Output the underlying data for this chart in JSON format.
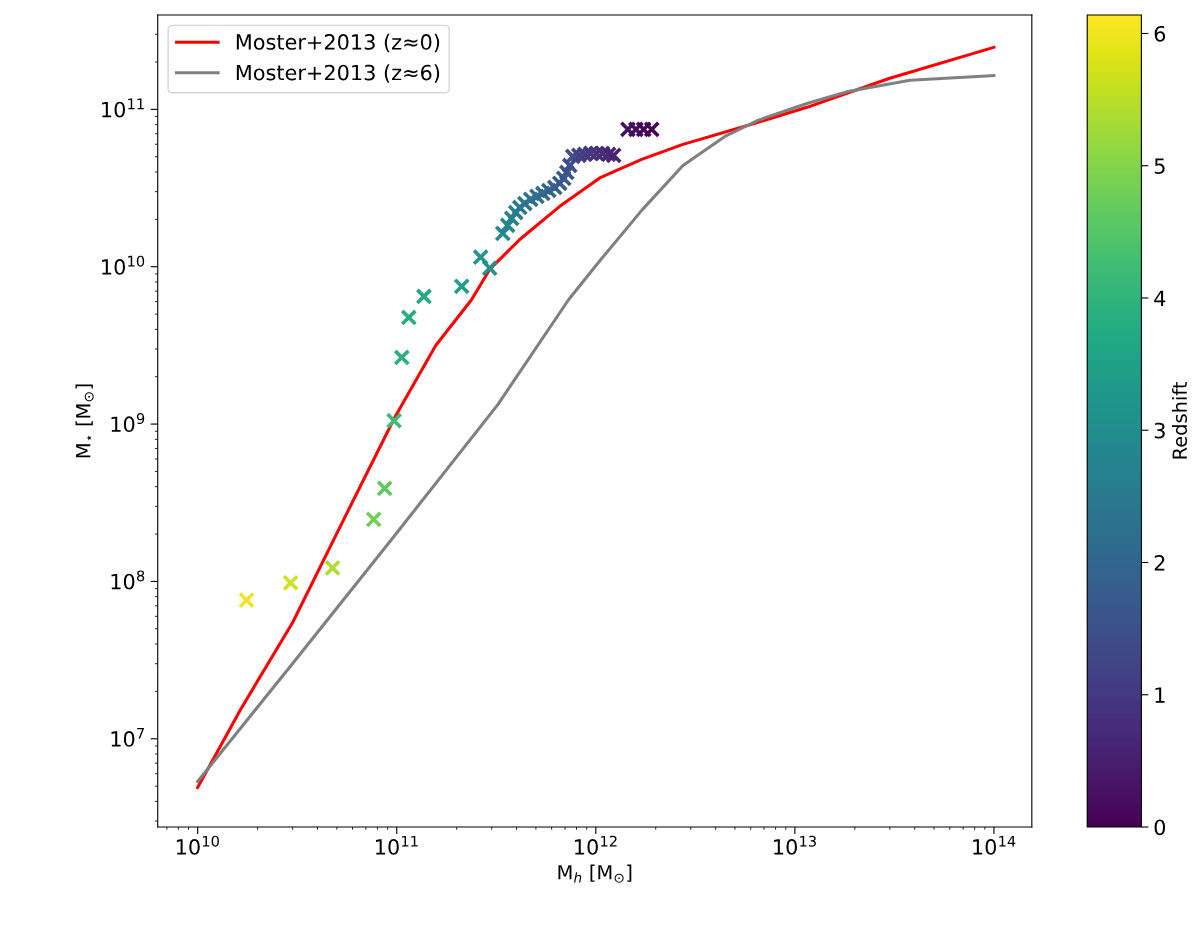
{
  "chart_data": {
    "type": "scatter",
    "xlabel": "M$_{h}$ [M$_{⊙}$]",
    "ylabel": "M$_{⋆}$ [M$_{⊙}$]",
    "clabel": "Redshift",
    "log": "xy",
    "grid": false,
    "legend": "top left",
    "xlim": [
      6300000000.0,
      155000000000000.0
    ],
    "ylim": [
      2750000.0,
      398000000000.0
    ],
    "xticks": [
      {
        "value": 10000000000.0,
        "label": "10$^{10}$"
      },
      {
        "value": 100000000000.0,
        "label": "10$^{11}$"
      },
      {
        "value": 1000000000000.0,
        "label": "10$^{12}$"
      },
      {
        "value": 10000000000000.0,
        "label": "10$^{13}$"
      },
      {
        "value": 100000000000000.0,
        "label": "10$^{14}$"
      }
    ],
    "yticks": [
      {
        "value": 10000000.0,
        "label": "10$^{7}$"
      },
      {
        "value": 100000000.0,
        "label": "10$^{8}$"
      },
      {
        "value": 1000000000.0,
        "label": "10$^{9}$"
      },
      {
        "value": 10000000000.0,
        "label": "10$^{10}$"
      },
      {
        "value": 100000000000.0,
        "label": "10$^{11}$"
      }
    ],
    "clim": [
      0,
      6.14
    ],
    "cticks": [
      0,
      1,
      2,
      3,
      4,
      5,
      6
    ],
    "series": [
      {
        "type": "line",
        "name": "Moster+2013 (z≈0)",
        "color": "#ff0000",
        "x": [
          10000000000.0,
          16400000000.0,
          30000000000.0,
          54200000000.0,
          97700000000.0,
          157000000000.0,
          238000000000.0,
          293000000000.0,
          415000000000.0,
          659000000000.0,
          1060000000000.0,
          1700000000000.0,
          2740000000000.0,
          5610000000000.0,
          11500000000000.0,
          29700000000000.0,
          100000000000000.0
        ],
        "values": [
          4900000.0,
          15300000.0,
          54800000.0,
          248000000.0,
          1100000000.0,
          3160000000.0,
          6190000000.0,
          9610000000.0,
          14900000000.0,
          24200000000.0,
          37000000000.0,
          48100000000.0,
          59900000000.0,
          78000000000.0,
          103000000000.0,
          157000000000.0,
          248000000000.0
        ]
      },
      {
        "type": "line",
        "name": "Moster+2013 (z≈6)",
        "color": "#808080",
        "x": [
          10000000000.0,
          30000000000.0,
          97700000000.0,
          322000000000.0,
          731000000000.0,
          1060000000000.0,
          1700000000000.0,
          2740000000000.0,
          4450000000000.0,
          6520000000000.0,
          11500000000000.0,
          18500000000000.0,
          37800000000000.0,
          100000000000000.0
        ],
        "values": [
          5350000.0,
          30100000.0,
          196000000.0,
          1330000000.0,
          6190000000.0,
          11100000000.0,
          22800000000.0,
          44000000000.0,
          67300000000.0,
          85100000000.0,
          109000000000.0,
          130000000000.0,
          153000000000.0,
          164000000000.0
        ]
      },
      {
        "marker": "cross",
        "x": [
          17600000000.0,
          29300000000.0,
          47600000000.0,
          76600000000.0,
          87000000000.0,
          97000000000.0,
          106000000000.0,
          115000000000.0,
          137000000000.0,
          212000000000.0,
          264000000000.0,
          293000000000.0,
          341000000000.0,
          361000000000.0,
          378000000000.0,
          396000000000.0,
          415000000000.0,
          440000000000.0,
          471000000000.0,
          506000000000.0,
          542000000000.0,
          581000000000.0,
          622000000000.0,
          659000000000.0,
          690000000000.0,
          715000000000.0,
          740000000000.0,
          766000000000.0,
          822000000000.0,
          881000000000.0,
          944000000000.0,
          1010000000000.0,
          1080000000000.0,
          1160000000000.0,
          1230000000000.0,
          1450000000000.0,
          1590000000000.0,
          1740000000000.0,
          1910000000000.0
        ],
        "values": [
          76000000.0,
          98000000.0,
          122000000.0,
          248000000.0,
          390000000.0,
          1050000000.0,
          2650000000.0,
          4760000000.0,
          6470000000.0,
          7500000000.0,
          11500000000.0,
          9800000000.0,
          16300000000.0,
          18300000000.0,
          20300000000.0,
          22100000000.0,
          23800000000.0,
          25200000000.0,
          26800000000.0,
          28000000000.0,
          29200000000.0,
          30500000000.0,
          31900000000.0,
          33900000000.0,
          36400000000.0,
          39700000000.0,
          44000000000.0,
          50200000000.0,
          51000000000.0,
          51800000000.0,
          52500000000.0,
          52500000000.0,
          52500000000.0,
          51800000000.0,
          51000000000.0,
          74600000000.0,
          74600000000.0,
          74600000000.0,
          74600000000.0
        ],
        "colors": [
          "#eee525",
          "#cfe126",
          "#afdc2f",
          "#70ce57",
          "#5ec861",
          "#3fbb73",
          "#2eb07d",
          "#28ac80",
          "#22a884",
          "#229d88",
          "#21968a",
          "#21928c",
          "#248a8d",
          "#25868d",
          "#26828d",
          "#287e8e",
          "#297a8e",
          "#2b768e",
          "#2d728e",
          "#2f6e8e",
          "#306a8d",
          "#32668d",
          "#34618d",
          "#365d8d",
          "#38598c",
          "#3a548b",
          "#3c508a",
          "#3e4c89",
          "#414286",
          "#423d83",
          "#443880",
          "#46337d",
          "#462e7a",
          "#472977",
          "#482374",
          "#461364",
          "#450d5e",
          "#44065a",
          "#440457"
        ]
      }
    ]
  }
}
